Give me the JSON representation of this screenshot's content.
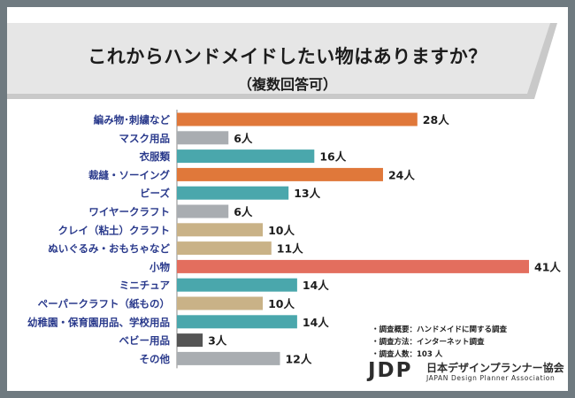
{
  "header": {
    "title": "これからハンドメイドしたい物はありますか？",
    "subtitle": "（複数回答可）"
  },
  "notes": [
    "・調査概要：ハンドメイドに関する調査",
    "・調査方法：インターネット調査",
    "・調査人数：103 人"
  ],
  "logo": {
    "mark": "JDP",
    "name_ja": "日本デザインプランナー協会",
    "name_en": "JAPAN Design Planner Association"
  },
  "colors": {
    "frame": "#6f7a80",
    "banner": "#e6e6e6",
    "banner_shadow": "#c9c9c9",
    "orange": "#e0783a",
    "gray": "#a9adb1",
    "teal": "#4aa7ac",
    "tan": "#c9b287",
    "coral": "#e36e5e",
    "dark": "#555555"
  },
  "chart_data": {
    "type": "bar",
    "orientation": "horizontal",
    "title": "これからハンドメイドしたい物はありますか？",
    "subtitle": "（複数回答可）",
    "unit": "人",
    "xlim": [
      0,
      41
    ],
    "categories": [
      "編み物･刺繍など",
      "マスク用品",
      "衣服類",
      "裁縫・ソーイング",
      "ビーズ",
      "ワイヤークラフト",
      "クレイ（粘土）クラフト",
      "ぬいぐるみ・おもちゃなど",
      "小物",
      "ミニチュア",
      "ペーパークラフト（紙もの）",
      "幼稚園・保育園用品、学校用品",
      "ベビー用品",
      "その他"
    ],
    "values": [
      28,
      6,
      16,
      24,
      13,
      6,
      10,
      11,
      41,
      14,
      10,
      14,
      3,
      12
    ],
    "labels": [
      "28人",
      "6人",
      "16人",
      "24人",
      "13人",
      "6人",
      "10人",
      "11人",
      "41人",
      "14人",
      "10人",
      "14人",
      "3人",
      "12人"
    ],
    "bar_colors": [
      "orange",
      "gray",
      "teal",
      "orange",
      "teal",
      "gray",
      "tan",
      "tan",
      "coral",
      "teal",
      "tan",
      "teal",
      "dark",
      "gray"
    ]
  }
}
